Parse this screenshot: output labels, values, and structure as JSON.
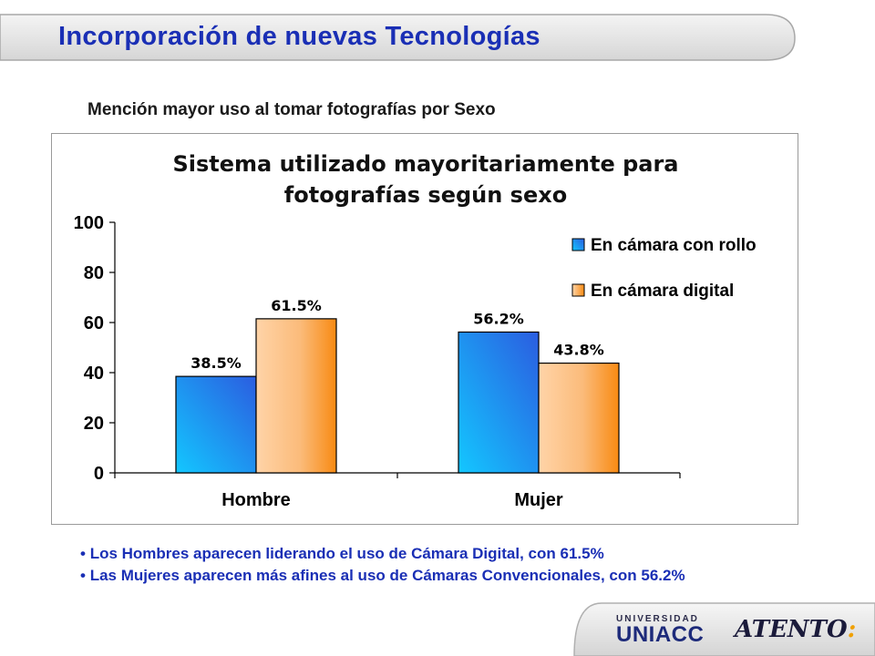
{
  "page": {
    "title": "Incorporación de nuevas Tecnologías",
    "subtitle": "Mención mayor uso al tomar fotografías por Sexo"
  },
  "chart_data": {
    "type": "bar",
    "title_lines": [
      "Sistema utilizado mayoritariamente para",
      "fotografías según sexo"
    ],
    "categories": [
      "Hombre",
      "Mujer"
    ],
    "series": [
      {
        "name": "En cámara con rollo",
        "values": [
          38.5,
          56.2
        ],
        "labels": [
          "38.5%",
          "56.2%"
        ],
        "color": "#1fa8f0"
      },
      {
        "name": "En cámara digital",
        "values": [
          61.5,
          43.8
        ],
        "labels": [
          "61.5%",
          "43.8%"
        ],
        "color": "#f89a30"
      }
    ],
    "ylim": [
      0,
      100
    ],
    "yticks": [
      "0",
      "20",
      "40",
      "60",
      "80",
      "100"
    ],
    "grid": false,
    "legend_position": "top-right"
  },
  "bullets": [
    "Los Hombres aparecen liderando el uso de Cámara Digital, con 61.5%",
    "Las Mujeres aparecen más afines al uso de Cámaras Convencionales, con 56.2%"
  ],
  "logos": {
    "universidad_small": "UNIVERSIDAD",
    "universidad_big": "UNIACC",
    "atento": "ATENTO",
    "atento_colon": ":"
  }
}
